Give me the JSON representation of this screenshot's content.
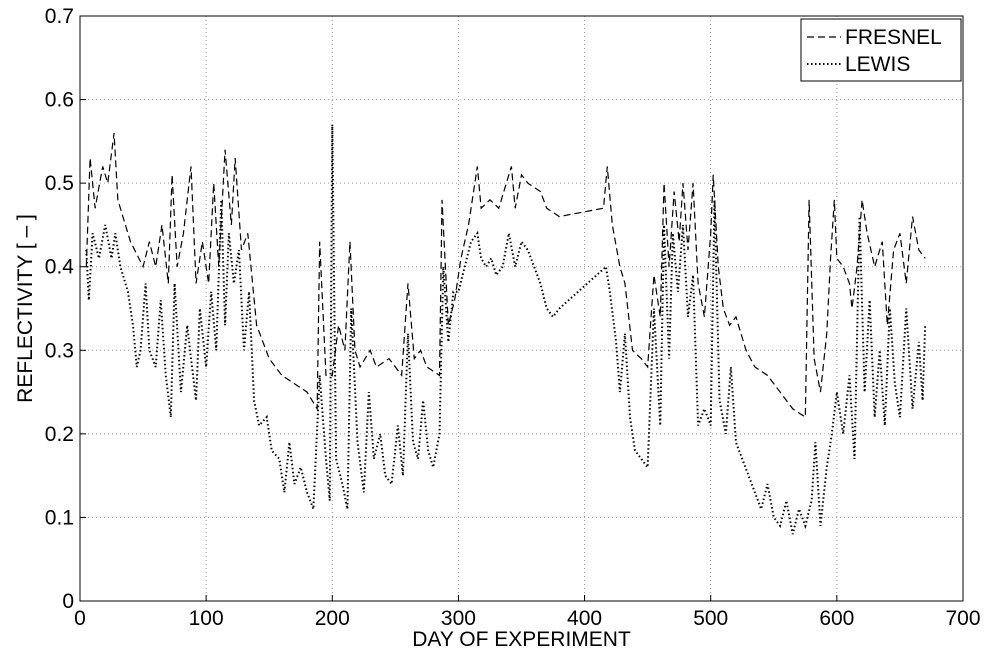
{
  "chart_data": {
    "type": "line",
    "xlabel": "DAY OF EXPERIMENT",
    "ylabel": "REFLECTIVITY [ – ]",
    "xlim": [
      0,
      700
    ],
    "xticks": [
      0,
      100,
      200,
      300,
      400,
      500,
      600,
      700
    ],
    "ylim": [
      0,
      0.7
    ],
    "yticks": [
      0,
      0.1,
      0.2,
      0.3,
      0.4,
      0.5,
      0.6,
      0.7
    ],
    "grid": true,
    "legend": "upper right",
    "series": [
      {
        "name": "FRESNEL",
        "color": "#000000",
        "style": "dashed",
        "x": [
          5,
          8,
          12,
          18,
          22,
          27,
          30,
          40,
          50,
          55,
          60,
          65,
          70,
          73,
          77,
          82,
          88,
          92,
          97,
          102,
          106,
          110,
          115,
          120,
          123,
          128,
          133,
          140,
          150,
          160,
          170,
          180,
          188,
          190,
          195,
          200,
          205,
          210,
          214,
          218,
          222,
          230,
          235,
          245,
          255,
          260,
          265,
          270,
          275,
          285,
          287,
          292,
          297,
          302,
          308,
          315,
          318,
          325,
          332,
          338,
          342,
          345,
          350,
          355,
          365,
          370,
          380,
          415,
          418,
          422,
          428,
          432,
          438,
          445,
          450,
          455,
          460,
          463,
          467,
          471,
          475,
          478,
          482,
          486,
          490,
          495,
          500,
          502,
          506,
          510,
          515,
          520,
          528,
          535,
          545,
          555,
          565,
          575,
          578,
          582,
          587,
          592,
          595,
          598,
          600,
          605,
          610,
          612,
          616,
          620,
          624,
          630,
          636,
          640,
          645,
          650,
          655,
          660,
          665,
          670
        ],
        "values": [
          0.4,
          0.53,
          0.47,
          0.52,
          0.5,
          0.56,
          0.48,
          0.43,
          0.4,
          0.43,
          0.4,
          0.45,
          0.38,
          0.51,
          0.4,
          0.44,
          0.52,
          0.38,
          0.43,
          0.38,
          0.5,
          0.4,
          0.54,
          0.45,
          0.53,
          0.42,
          0.44,
          0.33,
          0.29,
          0.27,
          0.26,
          0.25,
          0.23,
          0.43,
          0.27,
          0.27,
          0.33,
          0.3,
          0.43,
          0.3,
          0.28,
          0.3,
          0.28,
          0.29,
          0.27,
          0.38,
          0.29,
          0.3,
          0.28,
          0.27,
          0.48,
          0.33,
          0.36,
          0.41,
          0.45,
          0.52,
          0.47,
          0.48,
          0.47,
          0.5,
          0.52,
          0.47,
          0.51,
          0.5,
          0.49,
          0.47,
          0.46,
          0.47,
          0.52,
          0.45,
          0.4,
          0.38,
          0.3,
          0.29,
          0.28,
          0.39,
          0.34,
          0.5,
          0.4,
          0.49,
          0.43,
          0.5,
          0.42,
          0.5,
          0.38,
          0.34,
          0.44,
          0.51,
          0.4,
          0.35,
          0.33,
          0.34,
          0.3,
          0.28,
          0.27,
          0.25,
          0.23,
          0.22,
          0.48,
          0.29,
          0.25,
          0.32,
          0.41,
          0.48,
          0.41,
          0.4,
          0.38,
          0.35,
          0.4,
          0.48,
          0.44,
          0.4,
          0.43,
          0.33,
          0.42,
          0.44,
          0.38,
          0.46,
          0.42,
          0.41
        ]
      },
      {
        "name": "LEWIS",
        "color": "#000000",
        "style": "dotted",
        "x": [
          5,
          7,
          10,
          15,
          20,
          25,
          28,
          32,
          38,
          42,
          45,
          48,
          52,
          55,
          60,
          64,
          68,
          72,
          75,
          80,
          85,
          88,
          92,
          95,
          100,
          104,
          108,
          112,
          115,
          118,
          122,
          126,
          130,
          134,
          138,
          142,
          148,
          152,
          158,
          162,
          166,
          170,
          175,
          180,
          185,
          190,
          195,
          198,
          200,
          203,
          208,
          212,
          215,
          220,
          225,
          229,
          233,
          238,
          242,
          247,
          252,
          256,
          260,
          264,
          268,
          272,
          276,
          280,
          285,
          288,
          292,
          296,
          300,
          305,
          310,
          315,
          318,
          322,
          326,
          330,
          335,
          340,
          345,
          350,
          355,
          360,
          365,
          370,
          375,
          380,
          417,
          420,
          425,
          428,
          432,
          436,
          440,
          445,
          450,
          455,
          460,
          463,
          467,
          470,
          474,
          478,
          482,
          486,
          490,
          495,
          500,
          503,
          507,
          512,
          516,
          520,
          525,
          530,
          535,
          540,
          545,
          550,
          555,
          560,
          565,
          570,
          575,
          580,
          583,
          587,
          592,
          596,
          600,
          605,
          610,
          614,
          618,
          622,
          626,
          630,
          634,
          638,
          642,
          646,
          650,
          655,
          660,
          665,
          668,
          670
        ],
        "values": [
          0.42,
          0.36,
          0.44,
          0.41,
          0.45,
          0.41,
          0.44,
          0.4,
          0.37,
          0.33,
          0.28,
          0.3,
          0.38,
          0.3,
          0.28,
          0.36,
          0.27,
          0.22,
          0.38,
          0.25,
          0.33,
          0.29,
          0.24,
          0.35,
          0.28,
          0.37,
          0.3,
          0.48,
          0.33,
          0.44,
          0.38,
          0.42,
          0.3,
          0.37,
          0.24,
          0.21,
          0.22,
          0.18,
          0.17,
          0.13,
          0.19,
          0.14,
          0.16,
          0.13,
          0.11,
          0.27,
          0.17,
          0.12,
          0.57,
          0.17,
          0.14,
          0.11,
          0.35,
          0.19,
          0.13,
          0.25,
          0.17,
          0.2,
          0.15,
          0.14,
          0.21,
          0.15,
          0.32,
          0.19,
          0.17,
          0.24,
          0.18,
          0.16,
          0.2,
          0.4,
          0.31,
          0.37,
          0.37,
          0.4,
          0.43,
          0.44,
          0.41,
          0.4,
          0.41,
          0.39,
          0.4,
          0.44,
          0.4,
          0.43,
          0.42,
          0.4,
          0.38,
          0.35,
          0.34,
          0.35,
          0.4,
          0.37,
          0.31,
          0.25,
          0.32,
          0.22,
          0.18,
          0.17,
          0.16,
          0.35,
          0.21,
          0.45,
          0.29,
          0.44,
          0.37,
          0.45,
          0.34,
          0.39,
          0.21,
          0.23,
          0.21,
          0.48,
          0.24,
          0.2,
          0.28,
          0.19,
          0.17,
          0.15,
          0.13,
          0.11,
          0.14,
          0.1,
          0.09,
          0.12,
          0.08,
          0.11,
          0.09,
          0.12,
          0.19,
          0.09,
          0.16,
          0.2,
          0.25,
          0.2,
          0.27,
          0.17,
          0.46,
          0.25,
          0.36,
          0.22,
          0.3,
          0.21,
          0.35,
          0.26,
          0.22,
          0.35,
          0.23,
          0.31,
          0.24,
          0.33
        ]
      }
    ]
  }
}
